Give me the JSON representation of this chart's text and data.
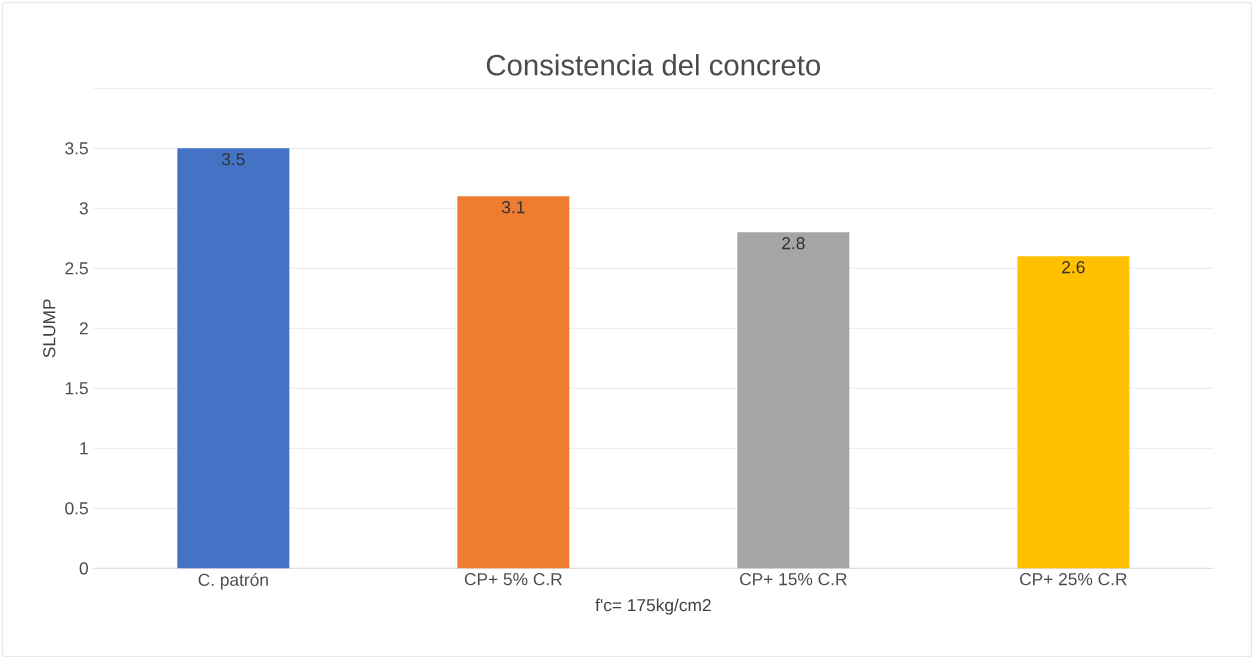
{
  "chart_data": {
    "type": "bar",
    "title": "Consistencia del concreto",
    "xlabel": "f'c= 175kg/cm2",
    "ylabel": "SLUMP",
    "categories": [
      "C. patrón",
      "CP+ 5% C.R",
      "CP+ 15% C.R",
      "CP+ 25% C.R"
    ],
    "values": [
      3.5,
      3.1,
      2.8,
      2.6
    ],
    "colors": [
      "#4472c4",
      "#ed7d31",
      "#a5a5a5",
      "#ffc000"
    ],
    "ylim": [
      0,
      4
    ],
    "yticks": [
      0,
      0.5,
      1,
      1.5,
      2,
      2.5,
      3,
      3.5,
      {
        "value": 4,
        "label": null
      }
    ],
    "grid": "y",
    "data_labels": true
  }
}
